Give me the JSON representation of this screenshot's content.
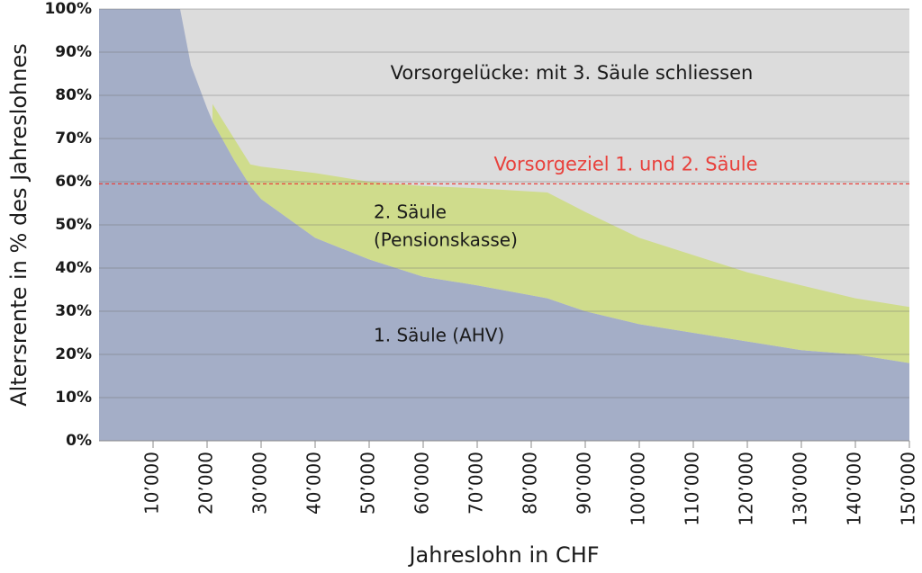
{
  "chart_data": {
    "type": "stacked_area",
    "x": [
      0,
      15000,
      17000,
      20000,
      21000,
      25000,
      28000,
      30000,
      40000,
      50000,
      60000,
      70000,
      83000,
      90000,
      100000,
      110000,
      120000,
      130000,
      140000,
      150000
    ],
    "series": [
      {
        "name": "1. Säule (AHV)",
        "color": "#a4aec7",
        "values": [
          100,
          100,
          87,
          77,
          74,
          65,
          59,
          56,
          47,
          42,
          38,
          36,
          33,
          30,
          27,
          25,
          23,
          21,
          20,
          18
        ]
      },
      {
        "name": "2. Säule",
        "subname": "(Pensionskasse)",
        "color": "#cfdc8c",
        "values": [
          null,
          null,
          null,
          null,
          4,
          5,
          5,
          7.5,
          15,
          18,
          21,
          22.5,
          24.5,
          23,
          20,
          18,
          16,
          15,
          13,
          13
        ]
      }
    ],
    "gap_label": "Vorsorgelücke: mit 3. Säule schliessen",
    "background_color": "#dcdcdc",
    "target": {
      "label": "Vorsorgeziel 1. und 2. Säule",
      "value": 59.5,
      "color": "#e8413c"
    },
    "xlabel": "Jahreslohn in CHF",
    "ylabel": "Altersrente in % des Jahreslohnes",
    "xlim": [
      0,
      150000
    ],
    "ylim": [
      0,
      100
    ],
    "xticks": [
      {
        "value": 10000,
        "label": "10’000"
      },
      {
        "value": 20000,
        "label": "20’000"
      },
      {
        "value": 30000,
        "label": "30’000"
      },
      {
        "value": 40000,
        "label": "40’000"
      },
      {
        "value": 50000,
        "label": "50’000"
      },
      {
        "value": 60000,
        "label": "60’000"
      },
      {
        "value": 70000,
        "label": "70’000"
      },
      {
        "value": 80000,
        "label": "80’000"
      },
      {
        "value": 90000,
        "label": "90’000"
      },
      {
        "value": 100000,
        "label": "100’000"
      },
      {
        "value": 110000,
        "label": "110’000"
      },
      {
        "value": 120000,
        "label": "120’000"
      },
      {
        "value": 130000,
        "label": "130’000"
      },
      {
        "value": 140000,
        "label": "140’000"
      },
      {
        "value": 150000,
        "label": "150’000"
      }
    ],
    "yticks": [
      {
        "value": 0,
        "label": "0%"
      },
      {
        "value": 10,
        "label": "10%"
      },
      {
        "value": 20,
        "label": "20%"
      },
      {
        "value": 30,
        "label": "30%"
      },
      {
        "value": 40,
        "label": "40%"
      },
      {
        "value": 50,
        "label": "50%"
      },
      {
        "value": 60,
        "label": "60%"
      },
      {
        "value": 70,
        "label": "70%"
      },
      {
        "value": 80,
        "label": "80%"
      },
      {
        "value": 90,
        "label": "90%"
      },
      {
        "value": 100,
        "label": "100%"
      }
    ],
    "grid": true
  }
}
